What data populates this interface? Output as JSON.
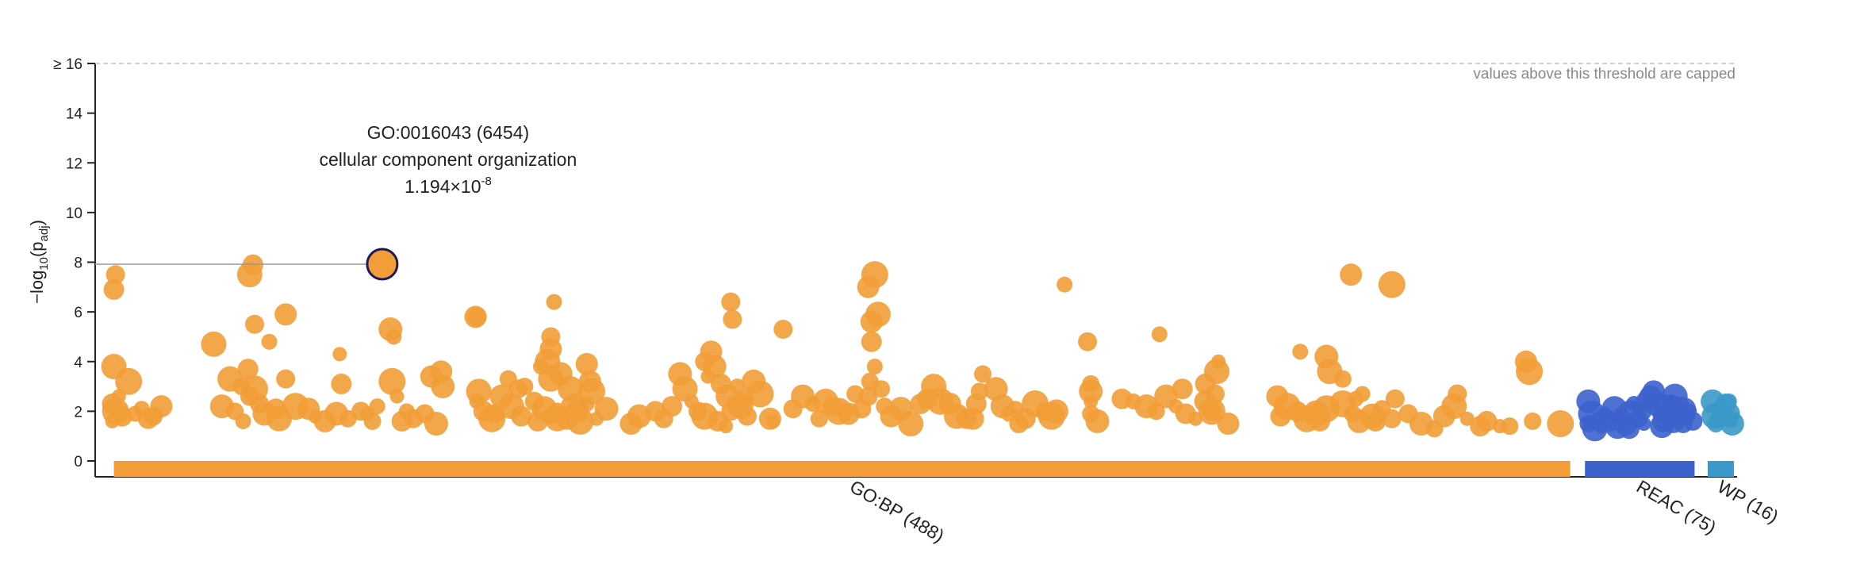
{
  "chart_data": {
    "type": "scatter",
    "title": "",
    "ylabel": {
      "prefix": "−log",
      "sub1": "10",
      "mid": "(p",
      "sub2": "adj",
      "suffix": ")"
    },
    "ylim": [
      0,
      16
    ],
    "y_ticks": [
      {
        "v": 0,
        "label": "0"
      },
      {
        "v": 2,
        "label": "2"
      },
      {
        "v": 4,
        "label": "4"
      },
      {
        "v": 6,
        "label": "6"
      },
      {
        "v": 8,
        "label": "8"
      },
      {
        "v": 10,
        "label": "10"
      },
      {
        "v": 12,
        "label": "12"
      },
      {
        "v": 14,
        "label": "14"
      },
      {
        "v": 16,
        "label": "≥ 16"
      }
    ],
    "cap_note": "values above this threshold are capped",
    "x_range": [
      0,
      1000
    ],
    "sources": [
      {
        "name": "GO:BP",
        "label": "GO:BP (488)",
        "color": "#f29d37",
        "start": 9,
        "end": 899
      },
      {
        "name": "REAC",
        "label": "REAC (75)",
        "color": "#3c62cc",
        "start": 908,
        "end": 975
      },
      {
        "name": "WP",
        "label": "WP (16)",
        "color": "#3a99c8",
        "start": 983,
        "end": 999
      }
    ],
    "highlight": {
      "id_line": "GO:0016043 (6454)",
      "name_line": "cellular component organization",
      "p_mantissa": "1.194×10",
      "p_exponent": "-8",
      "x": 173,
      "y": 7.92
    },
    "points": {
      "GO:BP": [
        [
          10,
          7.5
        ],
        [
          9,
          6.9
        ],
        [
          9,
          3.8
        ],
        [
          18,
          3.2
        ],
        [
          12,
          2.6
        ],
        [
          8,
          2.3
        ],
        [
          10,
          2.0
        ],
        [
          14,
          1.8
        ],
        [
          8,
          1.6
        ],
        [
          22,
          1.9
        ],
        [
          26,
          2.1
        ],
        [
          30,
          1.7
        ],
        [
          33,
          1.8
        ],
        [
          38,
          2.2
        ],
        [
          34,
          1.9
        ],
        [
          94,
          7.9
        ],
        [
          92,
          7.5
        ],
        [
          95,
          5.5
        ],
        [
          114,
          5.9
        ],
        [
          104,
          4.8
        ],
        [
          70,
          4.7
        ],
        [
          91,
          3.7
        ],
        [
          80,
          3.3
        ],
        [
          87,
          3.0
        ],
        [
          95,
          2.9
        ],
        [
          92,
          2.6
        ],
        [
          75,
          2.2
        ],
        [
          83,
          2.0
        ],
        [
          98,
          2.3
        ],
        [
          101,
          1.9
        ],
        [
          88,
          1.6
        ],
        [
          108,
          2.1
        ],
        [
          110,
          1.7
        ],
        [
          114,
          3.3
        ],
        [
          120,
          2.2
        ],
        [
          128,
          2.1
        ],
        [
          132,
          1.8
        ],
        [
          138,
          1.6
        ],
        [
          145,
          1.9
        ],
        [
          152,
          1.7
        ],
        [
          160,
          2.0
        ],
        [
          164,
          1.9
        ],
        [
          170,
          2.2
        ],
        [
          167,
          1.6
        ],
        [
          147,
          4.3
        ],
        [
          148,
          3.1
        ],
        [
          178,
          5.3
        ],
        [
          180,
          5.0
        ],
        [
          179,
          3.2
        ],
        [
          182,
          2.6
        ],
        [
          188,
          2.0
        ],
        [
          185,
          1.6
        ],
        [
          192,
          1.7
        ],
        [
          199,
          1.9
        ],
        [
          206,
          1.5
        ],
        [
          203,
          3.4
        ],
        [
          209,
          3.6
        ],
        [
          210,
          3.0
        ],
        [
          230,
          5.8
        ],
        [
          231,
          5.8
        ],
        [
          232,
          2.8
        ],
        [
          231,
          2.4
        ],
        [
          235,
          2.0
        ],
        [
          240,
          1.7
        ],
        [
          246,
          2.6
        ],
        [
          250,
          3.3
        ],
        [
          252,
          2.2
        ],
        [
          256,
          2.9
        ],
        [
          260,
          3.0
        ],
        [
          266,
          2.4
        ],
        [
          272,
          2.1
        ],
        [
          276,
          1.8
        ],
        [
          280,
          2.0
        ],
        [
          282,
          3.5
        ],
        [
          288,
          2.9
        ],
        [
          290,
          2.2
        ],
        [
          294,
          1.6
        ],
        [
          280,
          1.7
        ],
        [
          268,
          1.6
        ],
        [
          258,
          1.8
        ],
        [
          242,
          1.9
        ],
        [
          278,
          6.4
        ],
        [
          276,
          5.0
        ],
        [
          276,
          4.5
        ],
        [
          274,
          4.0
        ],
        [
          276,
          3.3
        ],
        [
          270,
          3.8
        ],
        [
          286,
          1.7
        ],
        [
          292,
          2.0
        ],
        [
          298,
          3.9
        ],
        [
          300,
          3.2
        ],
        [
          301,
          2.8
        ],
        [
          298,
          2.3
        ],
        [
          310,
          2.1
        ],
        [
          304,
          1.7
        ],
        [
          325,
          1.5
        ],
        [
          330,
          1.8
        ],
        [
          345,
          1.7
        ],
        [
          340,
          2.0
        ],
        [
          350,
          2.2
        ],
        [
          355,
          3.5
        ],
        [
          358,
          2.9
        ],
        [
          362,
          2.4
        ],
        [
          366,
          2.0
        ],
        [
          370,
          4.0
        ],
        [
          374,
          4.4
        ],
        [
          376,
          3.8
        ],
        [
          372,
          3.4
        ],
        [
          380,
          3.1
        ],
        [
          384,
          2.6
        ],
        [
          388,
          2.3
        ],
        [
          392,
          2.2
        ],
        [
          386,
          2.0
        ],
        [
          370,
          1.8
        ],
        [
          378,
          1.6
        ],
        [
          383,
          1.4
        ],
        [
          386,
          6.4
        ],
        [
          387,
          5.7
        ],
        [
          390,
          3.0
        ],
        [
          394,
          2.5
        ],
        [
          396,
          1.8
        ],
        [
          400,
          3.2
        ],
        [
          404,
          2.7
        ],
        [
          410,
          1.7
        ],
        [
          418,
          5.3
        ],
        [
          412,
          1.6
        ],
        [
          424,
          2.1
        ],
        [
          430,
          2.6
        ],
        [
          436,
          2.3
        ],
        [
          440,
          1.7
        ],
        [
          444,
          2.4
        ],
        [
          448,
          2.2
        ],
        [
          452,
          2.0
        ],
        [
          458,
          1.9
        ],
        [
          462,
          2.7
        ],
        [
          466,
          2.1
        ],
        [
          470,
          7.0
        ],
        [
          474,
          7.5
        ],
        [
          472,
          5.6
        ],
        [
          472,
          4.8
        ],
        [
          474,
          3.8
        ],
        [
          471,
          3.2
        ],
        [
          470,
          2.6
        ],
        [
          476,
          5.9
        ],
        [
          478,
          2.9
        ],
        [
          480,
          2.2
        ],
        [
          484,
          1.8
        ],
        [
          490,
          2.1
        ],
        [
          496,
          1.5
        ],
        [
          502,
          2.3
        ],
        [
          506,
          2.5
        ],
        [
          510,
          3.0
        ],
        [
          514,
          2.4
        ],
        [
          520,
          2.3
        ],
        [
          524,
          1.8
        ],
        [
          530,
          1.7
        ],
        [
          540,
          3.5
        ],
        [
          538,
          2.8
        ],
        [
          536,
          2.3
        ],
        [
          534,
          1.7
        ],
        [
          548,
          2.9
        ],
        [
          552,
          2.2
        ],
        [
          556,
          1.9
        ],
        [
          560,
          2.1
        ],
        [
          566,
          1.7
        ],
        [
          572,
          2.3
        ],
        [
          578,
          2.0
        ],
        [
          582,
          1.8
        ],
        [
          562,
          1.5
        ],
        [
          585,
          2.0
        ],
        [
          590,
          7.1
        ],
        [
          604,
          4.8
        ],
        [
          606,
          3.1
        ],
        [
          606,
          2.8
        ],
        [
          606,
          2.4
        ],
        [
          606,
          1.9
        ],
        [
          610,
          1.6
        ],
        [
          625,
          2.5
        ],
        [
          632,
          2.4
        ],
        [
          640,
          2.2
        ],
        [
          646,
          2.0
        ],
        [
          652,
          2.6
        ],
        [
          658,
          2.2
        ],
        [
          664,
          1.9
        ],
        [
          670,
          1.7
        ],
        [
          676,
          2.4
        ],
        [
          680,
          2.0
        ],
        [
          648,
          5.1
        ],
        [
          662,
          2.9
        ],
        [
          676,
          3.1
        ],
        [
          683,
          3.6
        ],
        [
          684,
          4.0
        ],
        [
          682,
          2.7
        ],
        [
          680,
          2.0
        ],
        [
          690,
          1.5
        ],
        [
          720,
          2.6
        ],
        [
          726,
          2.2
        ],
        [
          732,
          2.0
        ],
        [
          738,
          1.7
        ],
        [
          744,
          1.9
        ],
        [
          750,
          2.1
        ],
        [
          760,
          2.3
        ],
        [
          766,
          1.9
        ],
        [
          770,
          1.6
        ],
        [
          746,
          1.6
        ],
        [
          722,
          1.8
        ],
        [
          734,
          4.4
        ],
        [
          750,
          4.2
        ],
        [
          752,
          3.6
        ],
        [
          760,
          3.3
        ],
        [
          768,
          2.5
        ],
        [
          772,
          2.7
        ],
        [
          784,
          2.1
        ],
        [
          780,
          1.6
        ],
        [
          790,
          1.7
        ],
        [
          800,
          1.9
        ],
        [
          808,
          1.5
        ],
        [
          816,
          1.3
        ],
        [
          822,
          1.8
        ],
        [
          828,
          2.2
        ],
        [
          836,
          1.7
        ],
        [
          844,
          1.4
        ],
        [
          848,
          1.6
        ],
        [
          856,
          1.4
        ],
        [
          765,
          7.5
        ],
        [
          790,
          7.1
        ],
        [
          778,
          1.8
        ],
        [
          792,
          2.5
        ],
        [
          830,
          2.7
        ],
        [
          872,
          4.0
        ],
        [
          874,
          3.6
        ],
        [
          862,
          1.4
        ],
        [
          876,
          1.6
        ],
        [
          893,
          1.5
        ]
      ],
      "REAC": [
        [
          910,
          2.4
        ],
        [
          912,
          1.9
        ],
        [
          910,
          1.5
        ],
        [
          914,
          1.3
        ],
        [
          916,
          1.7
        ],
        [
          920,
          1.9
        ],
        [
          924,
          1.6
        ],
        [
          926,
          2.1
        ],
        [
          930,
          1.8
        ],
        [
          933,
          1.5
        ],
        [
          936,
          1.9
        ],
        [
          938,
          2.3
        ],
        [
          941,
          1.7
        ],
        [
          943,
          2.0
        ],
        [
          946,
          2.4
        ],
        [
          948,
          2.6
        ],
        [
          950,
          2.8
        ],
        [
          952,
          2.3
        ],
        [
          954,
          1.9
        ],
        [
          956,
          1.6
        ],
        [
          958,
          2.1
        ],
        [
          960,
          2.4
        ],
        [
          962,
          2.2
        ],
        [
          963,
          2.6
        ],
        [
          965,
          1.9
        ],
        [
          967,
          2.3
        ],
        [
          969,
          2.1
        ],
        [
          971,
          1.8
        ],
        [
          972,
          2.0
        ],
        [
          974,
          1.6
        ],
        [
          944,
          1.5
        ],
        [
          955,
          1.4
        ],
        [
          962,
          1.6
        ],
        [
          968,
          1.5
        ],
        [
          918,
          1.4
        ],
        [
          928,
          1.4
        ],
        [
          935,
          1.3
        ]
      ],
      "WP": [
        [
          986,
          2.4
        ],
        [
          987,
          1.8
        ],
        [
          988,
          1.5
        ],
        [
          990,
          1.7
        ],
        [
          992,
          2.1
        ],
        [
          994,
          2.3
        ],
        [
          995,
          1.9
        ],
        [
          996,
          2.4
        ],
        [
          997,
          1.6
        ],
        [
          998,
          1.5
        ]
      ]
    }
  }
}
